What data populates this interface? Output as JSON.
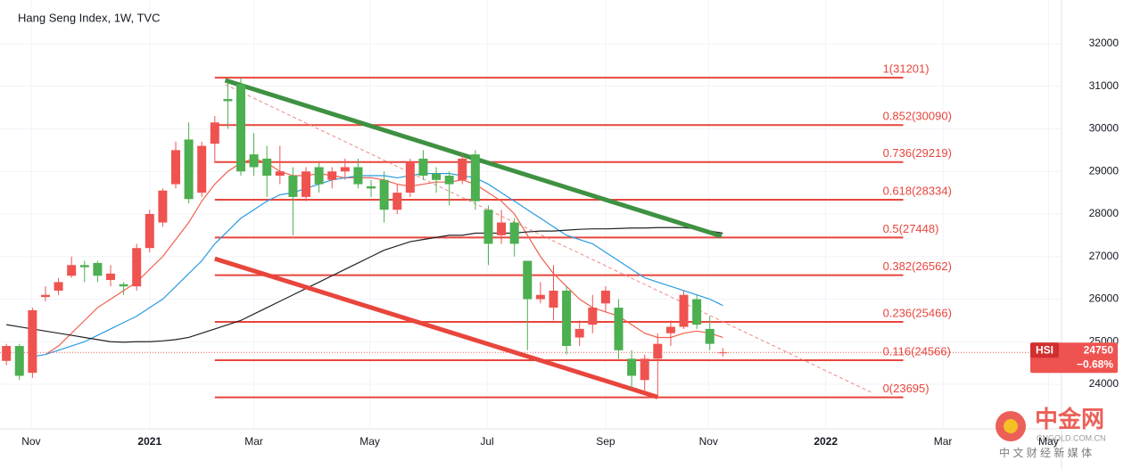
{
  "chart_data": {
    "type": "candlestick",
    "title": "Hang Seng Index, 1W, TVC",
    "categories": [
      null,
      null,
      null,
      null,
      null,
      null,
      null,
      null,
      null,
      null,
      null,
      null,
      null,
      null,
      null,
      null,
      null,
      null,
      null,
      null,
      null,
      null,
      null,
      null,
      null,
      null,
      null,
      null,
      null,
      null,
      null,
      null,
      null,
      null,
      null,
      null,
      null,
      null,
      null,
      null,
      null,
      null,
      null,
      null,
      null,
      null,
      null,
      null,
      null,
      null,
      null,
      null,
      null,
      null,
      null,
      null
    ],
    "open": [
      24550,
      24900,
      24270,
      26050,
      26200,
      26550,
      26800,
      26850,
      26450,
      26350,
      26300,
      27200,
      27800,
      28700,
      29750,
      28500,
      29650,
      30700,
      31050,
      29400,
      29300,
      28900,
      28900,
      28400,
      29100,
      28800,
      29000,
      29100,
      28650,
      28800,
      28100,
      28500,
      29300,
      28950,
      28900,
      28800,
      29400,
      28100,
      27500,
      27800,
      26900,
      26000,
      25800,
      26200,
      25100,
      25400,
      25900,
      25800,
      24600,
      24100,
      24600,
      25200,
      25350,
      26000,
      25300,
      24750
    ],
    "high": [
      24950,
      24950,
      25800,
      26300,
      26500,
      27000,
      26900,
      26900,
      26800,
      26400,
      27300,
      28100,
      28600,
      29700,
      30150,
      29700,
      30300,
      31100,
      31201,
      29900,
      29600,
      29600,
      29100,
      29100,
      29200,
      29100,
      29300,
      29300,
      28800,
      29000,
      28700,
      29300,
      29500,
      29100,
      29000,
      29400,
      29500,
      28200,
      28100,
      27900,
      26900,
      26400,
      26800,
      26300,
      25500,
      26100,
      26300,
      26000,
      24800,
      24700,
      25200,
      25500,
      26200,
      26100,
      25600,
      24850
    ],
    "low": [
      24450,
      24100,
      24150,
      25950,
      26100,
      26500,
      26400,
      26400,
      26300,
      26100,
      26200,
      27100,
      27700,
      28600,
      28250,
      28400,
      29200,
      30000,
      28900,
      28900,
      28400,
      28700,
      27500,
      28300,
      28500,
      28600,
      28800,
      28600,
      28400,
      27800,
      28000,
      28400,
      28800,
      28500,
      28200,
      28700,
      28100,
      26800,
      27300,
      27000,
      24800,
      25900,
      25500,
      24700,
      24900,
      25200,
      25700,
      24600,
      23900,
      23800,
      23695,
      24900,
      25300,
      25300,
      24800,
      24650
    ],
    "close": [
      24900,
      24200,
      25740,
      26100,
      26400,
      26800,
      26750,
      26550,
      26600,
      26300,
      27200,
      28000,
      28550,
      29500,
      28350,
      29600,
      30150,
      30650,
      29000,
      29100,
      28900,
      29000,
      28400,
      29000,
      28700,
      29000,
      29100,
      28700,
      28600,
      28100,
      28500,
      29200,
      28900,
      28800,
      28700,
      29300,
      28300,
      27300,
      27800,
      27300,
      26000,
      26100,
      26200,
      24900,
      25300,
      25800,
      26200,
      24800,
      24200,
      24600,
      24950,
      25350,
      26100,
      25400,
      24950,
      24750
    ],
    "up_color": "#ef5350",
    "down_color": "#4caf50",
    "lines": [
      {
        "color": "#f0604f",
        "values": [
          null,
          null,
          null,
          24700,
          24900,
          25200,
          25500,
          25800,
          26000,
          26200,
          26400,
          26700,
          27000,
          27400,
          27800,
          28300,
          28700,
          29000,
          29200,
          29300,
          29200,
          29000,
          28900,
          28900,
          28950,
          28900,
          28850,
          28850,
          28850,
          28800,
          28700,
          28650,
          28700,
          28750,
          28750,
          28800,
          28700,
          28500,
          28300,
          28000,
          27500,
          27000,
          26600,
          26300,
          26000,
          25800,
          25700,
          25600,
          25400,
          25200,
          25100,
          25100,
          25200,
          25250,
          25200,
          25100
        ]
      },
      {
        "color": "#2a9be0",
        "values": [
          null,
          null,
          24650,
          24700,
          24800,
          24900,
          25000,
          25150,
          25300,
          25450,
          25600,
          25800,
          26000,
          26300,
          26600,
          26900,
          27300,
          27600,
          27900,
          28100,
          28300,
          28450,
          28500,
          28600,
          28700,
          28800,
          28850,
          28900,
          28900,
          28900,
          28850,
          28900,
          28950,
          28950,
          28950,
          28900,
          28850,
          28700,
          28500,
          28300,
          28100,
          27900,
          27700,
          27500,
          27400,
          27300,
          27100,
          26900,
          26700,
          26500,
          26400,
          26300,
          26200,
          26100,
          26000,
          25850
        ]
      },
      {
        "color": "#222222",
        "values": [
          25400,
          25350,
          25300,
          25250,
          25200,
          25150,
          25100,
          25050,
          25000,
          24990,
          25000,
          25000,
          25020,
          25050,
          25100,
          25200,
          25300,
          25400,
          25500,
          25650,
          25800,
          25950,
          26100,
          26250,
          26400,
          26550,
          26700,
          26850,
          27000,
          27150,
          27250,
          27350,
          27400,
          27450,
          27500,
          27500,
          27550,
          27550,
          27550,
          27550,
          27580,
          27600,
          27600,
          27620,
          27640,
          27650,
          27650,
          27660,
          27670,
          27670,
          27680,
          27680,
          27680,
          27650,
          27600,
          27550
        ]
      }
    ],
    "fib_color": "#e8453c",
    "fib": [
      {
        "label": "1(31201)",
        "value": 31201
      },
      {
        "label": "0.852(30090)",
        "value": 30090
      },
      {
        "label": "0.736(29219)",
        "value": 29219
      },
      {
        "label": "0.618(28334)",
        "value": 28334
      },
      {
        "label": "0.5(27448)",
        "value": 27448
      },
      {
        "label": "0.382(26562)",
        "value": 26562
      },
      {
        "label": "0.236(25466)",
        "value": 25466
      },
      {
        "label": "0.116(24566)",
        "value": 24566
      },
      {
        "label": "0(23695)",
        "value": 23695
      }
    ],
    "trendlines": [
      {
        "color": "#3f9142",
        "style": "solid",
        "points": [
          [
            16.8,
            31140
          ],
          [
            54.9,
            27480
          ]
        ]
      },
      {
        "color": "#e8453c",
        "style": "solid",
        "points": [
          [
            16,
            26950
          ],
          [
            50,
            23700
          ]
        ]
      },
      {
        "color": "#ef8a80",
        "style": "dashed",
        "points": [
          [
            16.8,
            31040
          ],
          [
            66.4,
            23810
          ]
        ]
      }
    ],
    "xlim": [
      -0.49,
      81.0
    ],
    "xticks": [
      {
        "value": 1.9,
        "label": "Nov"
      },
      {
        "value": 11.0,
        "label": "2021"
      },
      {
        "value": 19.0,
        "label": "Mar"
      },
      {
        "value": 27.9,
        "label": "May"
      },
      {
        "value": 36.9,
        "label": "Jul"
      },
      {
        "value": 46.0,
        "label": "Sep"
      },
      {
        "value": 53.9,
        "label": "Nov"
      },
      {
        "value": 62.9,
        "label": "2022"
      },
      {
        "value": 71.9,
        "label": "Mar"
      },
      {
        "value": 80.0,
        "label": "May"
      }
    ],
    "ylim": [
      22953,
      33026
    ],
    "yticks": [
      24000,
      25000,
      26000,
      27000,
      28000,
      29000,
      30000,
      31000,
      32000
    ],
    "grid": true,
    "price_tag": {
      "symbol": "HSI",
      "price": 24750,
      "change": "−0.68%",
      "color": "#ef5350"
    }
  },
  "watermark": {
    "brand": "中金网",
    "site": "CNGOLD.COM.CN",
    "slogan": "中 文 财 经 新 媒 体"
  }
}
